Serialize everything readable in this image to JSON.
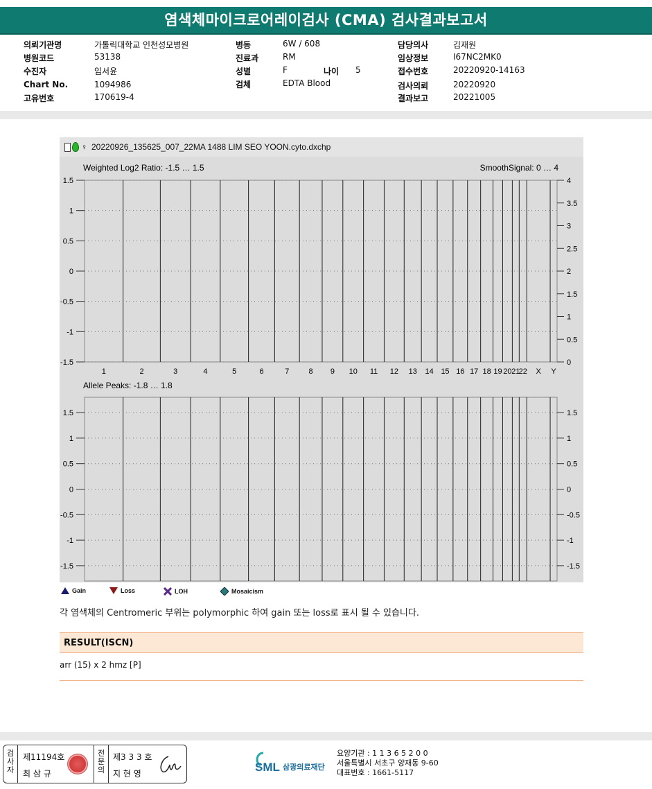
{
  "title": "염색체마이크로어레이검사 (CMA) 검사결과보고서",
  "info": {
    "col1": [
      {
        "label": "의뢰기관명",
        "value": "가톨릭대학교 인천성모병원"
      },
      {
        "label": "병원코드",
        "value": "53138"
      },
      {
        "label": "수진자",
        "value": "임서윤"
      },
      {
        "label": "Chart No.",
        "value": "1094986"
      },
      {
        "label": "고유번호",
        "value": "170619-4"
      }
    ],
    "col2": [
      {
        "label": "병동",
        "value": "6W / 608"
      },
      {
        "label": "진료과",
        "value": "RM"
      },
      {
        "label": "성별",
        "value": "F"
      },
      {
        "label": "검체",
        "value": "EDTA Blood"
      }
    ],
    "age": {
      "label": "나이",
      "value": "5"
    },
    "col3": [
      {
        "label": "담당의사",
        "value": "김재원"
      },
      {
        "label": "임상정보",
        "value": "I67NC2MK0"
      },
      {
        "label": "접수번호",
        "value": "20220920-14163"
      },
      {
        "label": "검사의뢰",
        "value": "20220920"
      },
      {
        "label": "결과보고",
        "value": "20221005"
      }
    ]
  },
  "plot": {
    "filename": "20220926_135625_007_22MA 1488 LIM SEO YOON.cyto.dxchp",
    "top_left_label": "Weighted Log2 Ratio: -1.5 … 1.5",
    "top_right_label": "SmoothSignal: 0 … 4",
    "bottom_label": "Allele Peaks: -1.8 … 1.8",
    "chromosomes": [
      "1",
      "2",
      "3",
      "4",
      "5",
      "6",
      "7",
      "8",
      "9",
      "10",
      "11",
      "12",
      "13",
      "14",
      "15",
      "16",
      "17",
      "18",
      "19",
      "20",
      "21",
      "22",
      "X",
      "Y"
    ],
    "chrom_widths": [
      56,
      54,
      44,
      43,
      41,
      38,
      36,
      33,
      30,
      30,
      30,
      29,
      25,
      23,
      23,
      21,
      19,
      18,
      14,
      14,
      10,
      11,
      34,
      10
    ],
    "top_left_ticks": [
      "1.5",
      "1",
      "0.5",
      "0",
      "-0.5",
      "-1",
      "-1.5"
    ],
    "top_right_ticks": [
      "4",
      "3.5",
      "3",
      "2.5",
      "2",
      "1.5",
      "1",
      "0.5",
      "0"
    ],
    "bottom_ticks": [
      "1.5",
      "1",
      "0.5",
      "0",
      "-0.5",
      "-1",
      "-1.5"
    ],
    "colors": {
      "green": "#1aa81a",
      "blue": "#1010d0",
      "purple": "#8a1ab0",
      "orange": "#ffb000",
      "loh": "#d9a0a0"
    }
  },
  "legend": {
    "gain": "Gain",
    "loss": "Loss",
    "loh": "LOH",
    "mosaicism": "Mosaicism"
  },
  "note": "각 염색체의 Centromeric 부위는 polymorphic 하여 gain 또는 loss로 표시 될 수 있습니다.",
  "result": {
    "heading": "RESULT(ISCN)",
    "value": "arr (15) x 2 hmz [P]"
  },
  "footer": {
    "sig1_label": [
      "검",
      "사",
      "자"
    ],
    "sig1_no": "제11194호",
    "sig1_name": "최 삼 규",
    "sig2_label": [
      "전",
      "문",
      "의"
    ],
    "sig2_no": "제3 3 3 호",
    "sig2_name": "지 현 영",
    "logo": "SML",
    "org_name": "삼광의료재단",
    "lines": [
      "요양기관 : 1 1 3 6 5 2 0 0",
      "서울특별시 서초구 양재동 9-60",
      "대표번호 : 1661-5117"
    ]
  }
}
